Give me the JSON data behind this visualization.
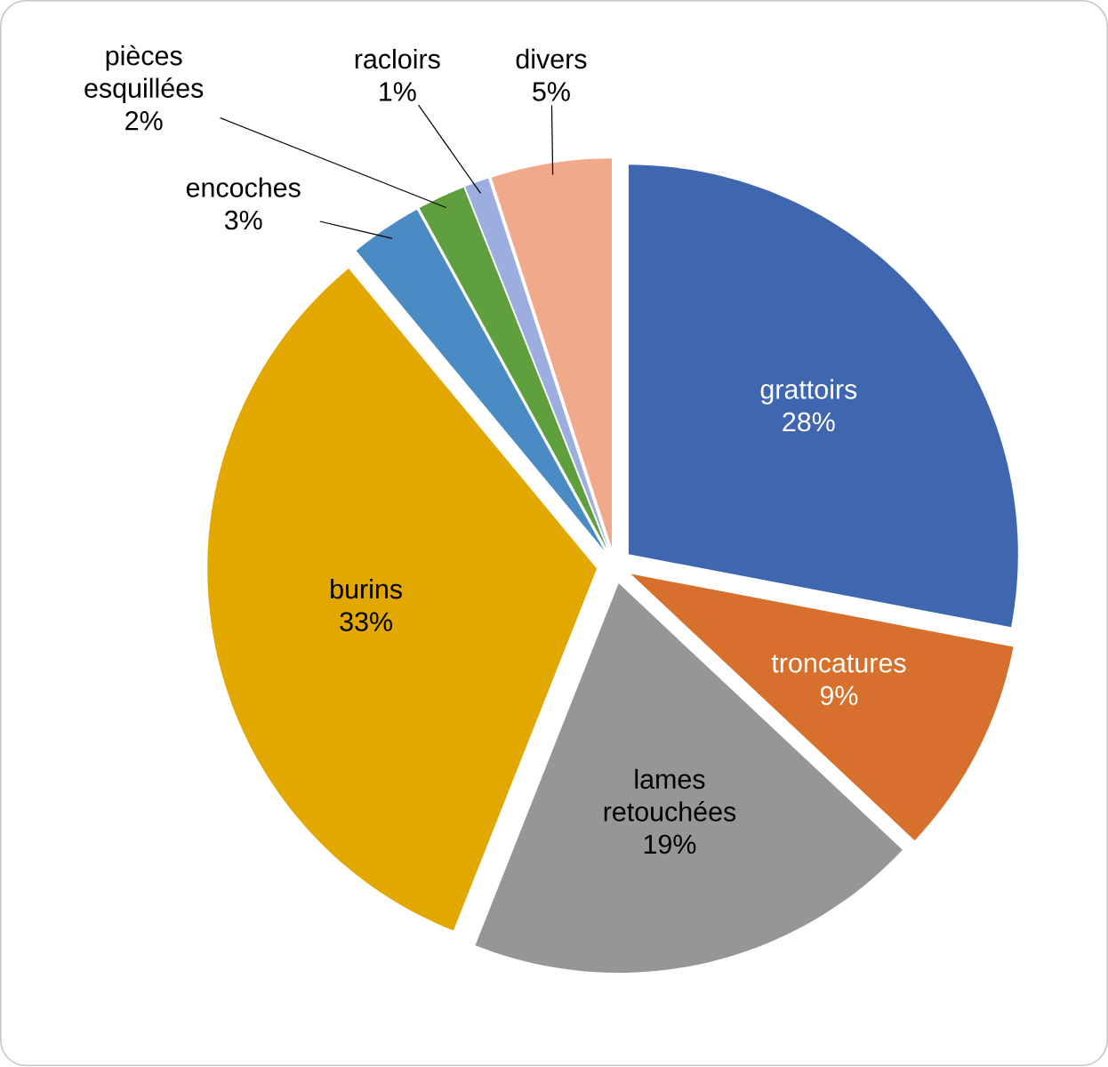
{
  "chart_data": {
    "type": "pie",
    "categories": [
      "grattoirs",
      "troncatures",
      "lames retouchées",
      "burins",
      "encoches",
      "pièces esquillées",
      "racloirs",
      "divers"
    ],
    "values": [
      28,
      9,
      19,
      33,
      3,
      2,
      1,
      5
    ],
    "value_labels": [
      "28%",
      "9%",
      "19%",
      "33%",
      "3%",
      "2%",
      "1%",
      "5%"
    ],
    "colors": [
      "#3e67b0",
      "#d6702c",
      "#969696",
      "#e2a800",
      "#4a8bc4",
      "#5f9f3e",
      "#9caee0",
      "#f0a98b"
    ]
  }
}
